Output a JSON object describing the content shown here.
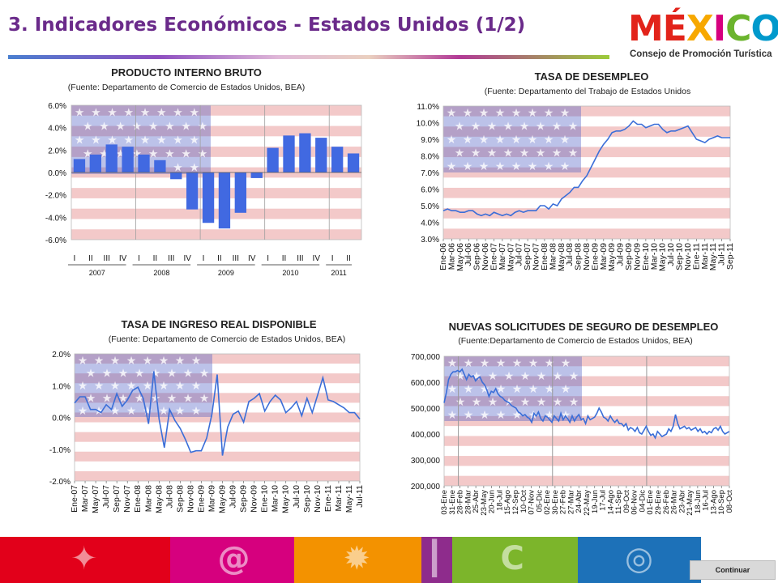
{
  "header": {
    "title": "3. Indicadores Económicos - Estados Unidos (1/2)",
    "logo_letters": [
      "M",
      "É",
      "X",
      "I",
      "C",
      "O"
    ],
    "logo_colors": [
      "#e2231a",
      "#e2231a",
      "#f7a800",
      "#d6007e",
      "#6bb42d",
      "#0099cc"
    ],
    "logo_sub": "Consejo de Promoción Turística"
  },
  "colors": {
    "bar_blue": "#4169e1",
    "line_blue": "#3a6ed8",
    "flag_blue": "#4f5fc4",
    "flag_red": "#f3c9c9",
    "footer": [
      "#e2001a",
      "#d6007e",
      "#f39200",
      "#8e2c8c",
      "#7cb52b",
      "#1d71b8"
    ]
  },
  "footer": {
    "icons": [
      "glyph-icon",
      "spiral-icon",
      "sun-icon",
      "column-icon",
      "ring-icon",
      "globe-icon"
    ],
    "continue_label": "Continuar"
  },
  "chart_data": [
    {
      "type": "bar",
      "title": "PRODUCTO INTERNO BRUTO",
      "subtitle": "(Fuente: Departamento de Comercio de Estados Unidos, BEA)",
      "ylim": [
        -6,
        6
      ],
      "yticks": [
        "6.0%",
        "4.0%",
        "2.0%",
        "0.0%",
        "-2.0%",
        "-4.0%",
        "-6.0%"
      ],
      "categories": [
        "I",
        "II",
        "III",
        "IV",
        "I",
        "II",
        "III",
        "IV",
        "I",
        "II",
        "III",
        "IV",
        "I",
        "II",
        "III",
        "IV",
        "I",
        "II"
      ],
      "values": [
        1.2,
        1.6,
        2.5,
        2.3,
        1.6,
        1.1,
        -0.6,
        -3.3,
        -4.5,
        -5.0,
        -3.6,
        -0.5,
        2.2,
        3.3,
        3.5,
        3.1,
        2.3,
        1.7
      ],
      "groups": [
        {
          "label": "2007",
          "quarters": 4
        },
        {
          "label": "2008",
          "quarters": 4
        },
        {
          "label": "2009",
          "quarters": 4
        },
        {
          "label": "2010",
          "quarters": 4
        },
        {
          "label": "2011",
          "quarters": 2
        }
      ]
    },
    {
      "type": "line",
      "title": "TASA DE DESEMPLEO",
      "subtitle": "(Fuente: Departamento del Trabajo de Estados Unidos",
      "ylim": [
        3,
        11
      ],
      "yticks": [
        "11.0%",
        "10.0%",
        "9.0%",
        "8.0%",
        "7.0%",
        "6.0%",
        "5.0%",
        "4.0%",
        "3.0%"
      ],
      "x": [
        "Ene-06",
        "Feb-06",
        "Mar-06",
        "Abr-06",
        "May-06",
        "Jun-06",
        "Jul-06",
        "Ago-06",
        "Sep-06",
        "Oct-06",
        "Nov-06",
        "Dic-06",
        "Ene-07",
        "Feb-07",
        "Mar-07",
        "Abr-07",
        "May-07",
        "Jun-07",
        "Jul-07",
        "Ago-07",
        "Sep-07",
        "Oct-07",
        "Nov-07",
        "Dic-07",
        "Ene-08",
        "Feb-08",
        "Mar-08",
        "Abr-08",
        "May-08",
        "Jun-08",
        "Jul-08",
        "Ago-08",
        "Sep-08",
        "Oct-08",
        "Nov-08",
        "Dic-08",
        "Ene-09",
        "Feb-09",
        "Mar-09",
        "Abr-09",
        "May-09",
        "Jun-09",
        "Jul-09",
        "Ago-09",
        "Sep-09",
        "Oct-09",
        "Nov-09",
        "Dic-09",
        "Ene-10",
        "Feb-10",
        "Mar-10",
        "Abr-10",
        "May-10",
        "Jun-10",
        "Jul-10",
        "Ago-10",
        "Sep-10",
        "Oct-10",
        "Nov-10",
        "Dic-10",
        "Ene-11",
        "Feb-11",
        "Mar-11",
        "Abr-11",
        "May-11",
        "Jun-11",
        "Jul-11",
        "Ago-11",
        "Sep-11"
      ],
      "xticks": [
        "Ene-06",
        "Mar-06",
        "May-06",
        "Jul-06",
        "Sep-06",
        "Nov-06",
        "Ene-07",
        "Mar-07",
        "May-07",
        "Jul-07",
        "Sep-07",
        "Nov-07",
        "Ene-08",
        "Mar-08",
        "May-08",
        "Jul-08",
        "Sep-08",
        "Nov-08",
        "Ene-09",
        "Mar-09",
        "May-09",
        "Jul-09",
        "Sep-09",
        "Nov-09",
        "Ene-10",
        "Mar-10",
        "May-10",
        "Jul-10",
        "Sep-10",
        "Nov-10",
        "Ene-11",
        "Mar-11",
        "May-11",
        "Jul-11",
        "Sep-11"
      ],
      "values": [
        4.7,
        4.8,
        4.7,
        4.7,
        4.6,
        4.6,
        4.7,
        4.7,
        4.5,
        4.4,
        4.5,
        4.4,
        4.6,
        4.5,
        4.4,
        4.5,
        4.4,
        4.6,
        4.7,
        4.6,
        4.7,
        4.7,
        4.7,
        5.0,
        5.0,
        4.8,
        5.1,
        5.0,
        5.4,
        5.6,
        5.8,
        6.1,
        6.1,
        6.5,
        6.8,
        7.3,
        7.8,
        8.3,
        8.7,
        9.0,
        9.4,
        9.5,
        9.5,
        9.6,
        9.8,
        10.1,
        9.9,
        9.9,
        9.7,
        9.8,
        9.9,
        9.9,
        9.6,
        9.4,
        9.5,
        9.5,
        9.6,
        9.7,
        9.8,
        9.4,
        9.0,
        8.9,
        8.8,
        9.0,
        9.1,
        9.2,
        9.1,
        9.1,
        9.1
      ]
    },
    {
      "type": "line",
      "title": "TASA DE INGRESO REAL DISPONIBLE",
      "subtitle": "(Fuente: Departamento de Comercio de Estados Unidos, BEA)",
      "ylim": [
        -2,
        2
      ],
      "yticks": [
        "2.0%",
        "1.0%",
        "0.0%",
        "-1.0%",
        "-2.0%"
      ],
      "xticks": [
        "Ene-07",
        "Mar-07",
        "May-07",
        "Jul-07",
        "Sep-07",
        "Nov-07",
        "Ene-08",
        "Mar-08",
        "May-08",
        "Jul-08",
        "Sep-08",
        "Nov-08",
        "Ene-09",
        "Mar-09",
        "May-09",
        "Jul-09",
        "Sep-09",
        "Nov-09",
        "Ene-10",
        "Mar-10",
        "May-10",
        "Jul-10",
        "Sep-10",
        "Nov-10",
        "Ene-11",
        "Mar-11",
        "May-11",
        "Jul-11"
      ],
      "values": [
        0.45,
        0.65,
        0.65,
        0.25,
        0.25,
        0.15,
        0.4,
        0.25,
        0.75,
        0.35,
        0.55,
        0.85,
        0.95,
        0.6,
        -0.2,
        1.45,
        -0.05,
        -0.95,
        0.25,
        -0.1,
        -0.35,
        -0.7,
        -1.1,
        -1.05,
        -1.05,
        -0.65,
        0.1,
        1.35,
        -1.2,
        -0.3,
        0.1,
        0.2,
        -0.15,
        0.5,
        0.6,
        0.75,
        0.2,
        0.5,
        0.7,
        0.55,
        0.15,
        0.3,
        0.5,
        0.05,
        0.6,
        0.15,
        0.7,
        1.25,
        0.55,
        0.5,
        0.4,
        0.3,
        0.15,
        0.15,
        -0.05
      ]
    },
    {
      "type": "line",
      "title": "NUEVAS SOLICITUDES DE SEGURO DE DESEMPLEO",
      "subtitle": "(Fuente:Departamento de Comercio de Estados Unidos, BEA)",
      "ylim": [
        200000,
        700000
      ],
      "yticks": [
        "700,000",
        "600,000",
        "500,000",
        "400,000",
        "300,000",
        "200,000"
      ],
      "xticks": [
        "03-Ene",
        "31-Ene",
        "28-Feb",
        "28-Mar",
        "25-Abr",
        "23-May",
        "20-Jun",
        "18-Jul",
        "15-Ago",
        "12-Sep",
        "10-Oct",
        "07-Nov",
        "05-Dic",
        "02-Ene",
        "30-Ene",
        "27-Feb",
        "27-Mar",
        "24-Abr",
        "22-May",
        "19-Jun",
        "17-Jul",
        "14-Ago",
        "11-Sep",
        "09-Oct",
        "06-Nov",
        "04-Dic",
        "01-Ene",
        "29-Ene",
        "26-Feb",
        "26-Mar",
        "23-Abr",
        "21-May",
        "18-Jun",
        "16-Jul",
        "13-Ago",
        "10-Sep",
        "08-Oct"
      ],
      "values": [
        520000,
        560000,
        610000,
        630000,
        640000,
        640000,
        645000,
        640000,
        650000,
        630000,
        610000,
        630000,
        620000,
        625000,
        605000,
        615000,
        620000,
        600000,
        590000,
        570000,
        545000,
        565000,
        560000,
        575000,
        555000,
        545000,
        540000,
        530000,
        525000,
        520000,
        510000,
        505000,
        500000,
        485000,
        480000,
        470000,
        475000,
        465000,
        460000,
        445000,
        480000,
        470000,
        485000,
        460000,
        450000,
        470000,
        465000,
        455000,
        445000,
        470000,
        460000,
        450000,
        480000,
        455000,
        470000,
        460000,
        445000,
        470000,
        450000,
        465000,
        475000,
        455000,
        460000,
        440000,
        470000,
        455000,
        460000,
        465000,
        480000,
        500000,
        485000,
        465000,
        460000,
        450000,
        470000,
        455000,
        445000,
        455000,
        440000,
        440000,
        430000,
        440000,
        415000,
        425000,
        420000,
        410000,
        425000,
        405000,
        400000,
        415000,
        430000,
        410000,
        395000,
        400000,
        385000,
        410000,
        400000,
        390000,
        395000,
        400000,
        420000,
        410000,
        430000,
        475000,
        440000,
        420000,
        425000,
        430000,
        420000,
        425000,
        415000,
        420000,
        425000,
        410000,
        420000,
        405000,
        410000,
        400000,
        410000,
        405000,
        420000,
        425000,
        415000,
        430000,
        410000,
        400000,
        405000,
        410000
      ]
    }
  ]
}
